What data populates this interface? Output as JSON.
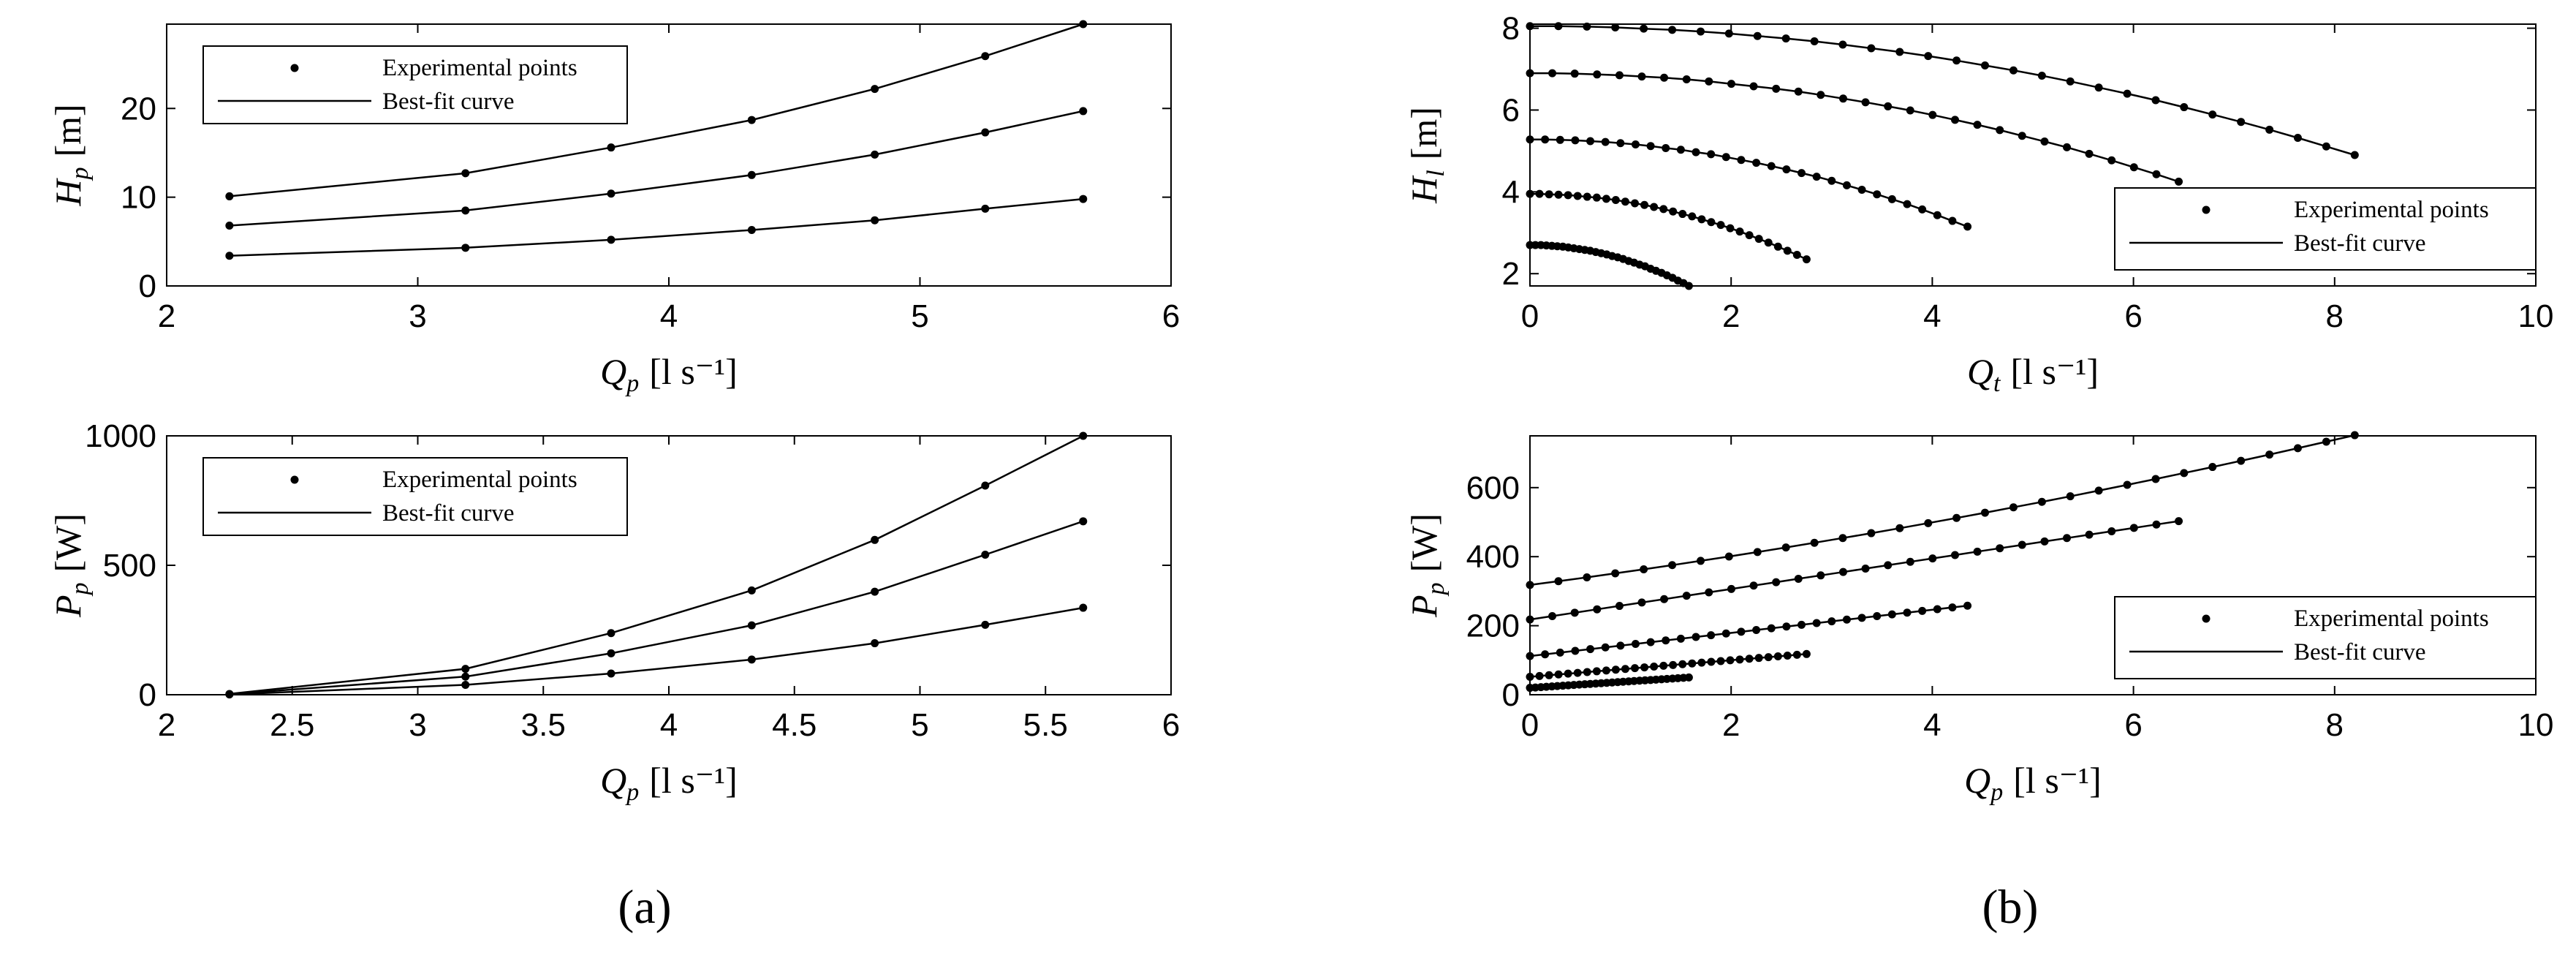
{
  "figure": {
    "caption_a": "(a)",
    "caption_b": "(b)"
  },
  "chart_data": [
    {
      "id": "a_top",
      "type": "line",
      "x_label": "Q",
      "x_sub": "p",
      "x_unit": "[l s⁻¹]",
      "y_label": "H",
      "y_sub": "p",
      "y_unit": "[m]",
      "xlim": [
        2,
        6
      ],
      "ylim": [
        0,
        29.5
      ],
      "xticks": [
        2,
        3,
        4,
        5,
        6
      ],
      "yticks": [
        0,
        10,
        20
      ],
      "legend": {
        "position": "top-left",
        "points_label": "Experimental points",
        "curve_label": "Best-fit curve"
      },
      "series": [
        {
          "x": [
            2.25,
            3.19,
            3.77,
            4.33,
            4.82,
            5.26,
            5.65
          ],
          "y": [
            10.1,
            12.7,
            15.6,
            18.7,
            22.2,
            25.9,
            29.5
          ]
        },
        {
          "x": [
            2.25,
            3.19,
            3.77,
            4.33,
            4.82,
            5.26,
            5.65
          ],
          "y": [
            6.8,
            8.5,
            10.4,
            12.5,
            14.8,
            17.3,
            19.7
          ]
        },
        {
          "x": [
            2.25,
            3.19,
            3.77,
            4.33,
            4.82,
            5.26,
            5.65
          ],
          "y": [
            3.4,
            4.3,
            5.2,
            6.3,
            7.4,
            8.7,
            9.8
          ]
        }
      ]
    },
    {
      "id": "a_bottom",
      "type": "line",
      "x_label": "Q",
      "x_sub": "p",
      "x_unit": "[l s⁻¹]",
      "y_label": "P",
      "y_sub": "p",
      "y_unit": "[W]",
      "xlim": [
        2,
        6
      ],
      "ylim": [
        0,
        1000
      ],
      "xticks": [
        2,
        2.5,
        3,
        3.5,
        4,
        4.5,
        5,
        5.5,
        6
      ],
      "yticks": [
        0,
        500,
        1000
      ],
      "legend": {
        "position": "top-left",
        "points_label": "Experimental points",
        "curve_label": "Best-fit curve"
      },
      "series": [
        {
          "x": [
            2.25,
            3.19,
            3.77,
            4.33,
            4.82,
            5.26,
            5.65
          ],
          "y": [
            3,
            100,
            238,
            403,
            598,
            808,
            1000
          ]
        },
        {
          "x": [
            2.25,
            3.19,
            3.77,
            4.33,
            4.82,
            5.26,
            5.65
          ],
          "y": [
            2,
            70,
            160,
            268,
            398,
            541,
            670
          ]
        },
        {
          "x": [
            2.25,
            3.19,
            3.77,
            4.33,
            4.82,
            5.26,
            5.65
          ],
          "y": [
            1,
            38,
            82,
            136,
            199,
            270,
            336
          ]
        }
      ]
    },
    {
      "id": "b_top",
      "type": "line",
      "x_label": "Q",
      "x_sub": "t",
      "x_unit": "[l s⁻¹]",
      "y_label": "H",
      "y_sub": "l",
      "y_unit": "[m]",
      "xlim": [
        0,
        10
      ],
      "ylim": [
        1.7,
        8.1
      ],
      "xticks": [
        0,
        2,
        4,
        6,
        8,
        10
      ],
      "yticks": [
        2,
        4,
        6,
        8
      ],
      "legend": {
        "position": "bottom-right",
        "points_label": "Experimental points",
        "curve_label": "Best-fit curve"
      },
      "series": [
        {
          "x_end": 8.2,
          "n": 30,
          "y_start": 8.05,
          "y_end": 4.9
        },
        {
          "x_end": 6.45,
          "n": 30,
          "y_start": 6.9,
          "y_end": 4.25
        },
        {
          "x_end": 4.35,
          "n": 30,
          "y_start": 5.28,
          "y_end": 3.15
        },
        {
          "x_end": 2.75,
          "n": 30,
          "y_start": 3.95,
          "y_end": 2.35
        },
        {
          "x_end": 1.58,
          "n": 30,
          "y_start": 2.7,
          "y_end": 1.7
        }
      ]
    },
    {
      "id": "b_bottom",
      "type": "line",
      "x_label": "Q",
      "x_sub": "p",
      "x_unit": "[l s⁻¹]",
      "y_label": "P",
      "y_sub": "p",
      "y_unit": "[W]",
      "xlim": [
        0,
        10
      ],
      "ylim": [
        0,
        750
      ],
      "xticks": [
        0,
        2,
        4,
        6,
        8,
        10
      ],
      "yticks": [
        0,
        200,
        400,
        600
      ],
      "legend": {
        "position": "bottom-right",
        "points_label": "Experimental points",
        "curve_label": "Best-fit curve"
      },
      "series": [
        {
          "x_end": 8.2,
          "n": 30,
          "y_start": 318,
          "y_end": 752,
          "shape": "convex"
        },
        {
          "x_end": 6.45,
          "n": 30,
          "y_start": 218,
          "y_end": 503,
          "shape": "linear"
        },
        {
          "x_end": 4.35,
          "n": 30,
          "y_start": 112,
          "y_end": 258,
          "shape": "linear"
        },
        {
          "x_end": 2.75,
          "n": 30,
          "y_start": 52,
          "y_end": 118,
          "shape": "linear"
        },
        {
          "x_end": 1.58,
          "n": 30,
          "y_start": 20,
          "y_end": 50,
          "shape": "linear"
        }
      ]
    }
  ]
}
